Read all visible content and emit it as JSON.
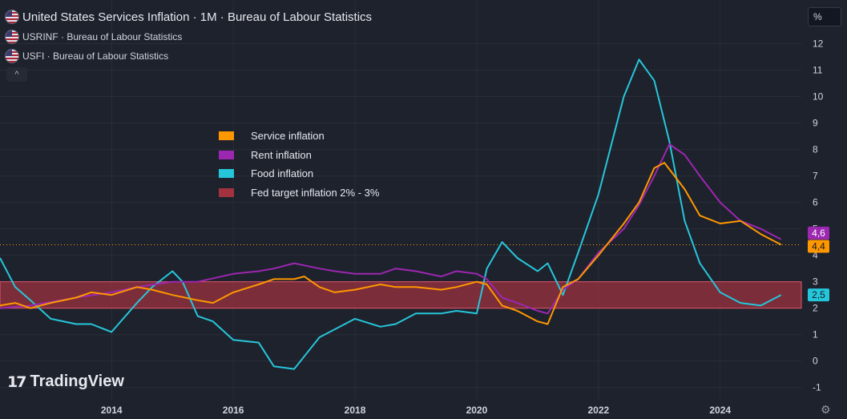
{
  "header": {
    "title": "United States Services Inflation · 1M · Bureau of Labour Statistics",
    "series_1": "USRINF · Bureau of Labour Statistics",
    "series_2": "USFI · Bureau of Labour Statistics",
    "collapse_glyph": "^"
  },
  "unit_label": "%",
  "legend": [
    {
      "label": "Service inflation",
      "color": "#ff9800"
    },
    {
      "label": "Rent inflation",
      "color": "#9c27b0"
    },
    {
      "label": "Food inflation",
      "color": "#26c6da"
    },
    {
      "label": "Fed target inflation 2% - 3%",
      "color": "#a3323f"
    }
  ],
  "branding": {
    "mark": "17",
    "name": "TradingView"
  },
  "settings_glyph": "⚙",
  "chart_data": {
    "type": "line",
    "x_axis": {
      "ticks": [
        "2014",
        "2016",
        "2018",
        "2020",
        "2022",
        "2024"
      ],
      "range": [
        "2012-03",
        "2025-05"
      ]
    },
    "y_axis": {
      "ticks": [
        "-1",
        "0",
        "1",
        "2",
        "3",
        "4",
        "5",
        "6",
        "7",
        "8",
        "9",
        "10",
        "11",
        "12"
      ],
      "ylim": [
        -1.25,
        12.5
      ],
      "unit": "%"
    },
    "band": {
      "label": "Fed target inflation 2% - 3%",
      "from": 2,
      "to": 3,
      "color": "#a3323f"
    },
    "reference_line": {
      "value": 4.4,
      "style": "dotted",
      "color": "#ff9800"
    },
    "series": [
      {
        "name": "Service inflation",
        "color": "#ff9800",
        "last_label": "4,4",
        "points": [
          [
            "2012-03",
            2.1
          ],
          [
            "2012-06",
            2.2
          ],
          [
            "2012-09",
            2.0
          ],
          [
            "2013-01",
            2.2
          ],
          [
            "2013-06",
            2.4
          ],
          [
            "2013-09",
            2.6
          ],
          [
            "2014-01",
            2.5
          ],
          [
            "2014-06",
            2.8
          ],
          [
            "2014-09",
            2.7
          ],
          [
            "2015-01",
            2.5
          ],
          [
            "2015-06",
            2.3
          ],
          [
            "2015-09",
            2.2
          ],
          [
            "2016-01",
            2.6
          ],
          [
            "2016-06",
            2.9
          ],
          [
            "2016-09",
            3.1
          ],
          [
            "2017-01",
            3.1
          ],
          [
            "2017-03",
            3.2
          ],
          [
            "2017-06",
            2.8
          ],
          [
            "2017-09",
            2.6
          ],
          [
            "2018-01",
            2.7
          ],
          [
            "2018-06",
            2.9
          ],
          [
            "2018-09",
            2.8
          ],
          [
            "2019-01",
            2.8
          ],
          [
            "2019-06",
            2.7
          ],
          [
            "2019-09",
            2.8
          ],
          [
            "2020-01",
            3.0
          ],
          [
            "2020-03",
            2.9
          ],
          [
            "2020-06",
            2.1
          ],
          [
            "2020-09",
            1.9
          ],
          [
            "2021-01",
            1.5
          ],
          [
            "2021-03",
            1.4
          ],
          [
            "2021-06",
            2.8
          ],
          [
            "2021-09",
            3.1
          ],
          [
            "2022-01",
            4.0
          ],
          [
            "2022-06",
            5.2
          ],
          [
            "2022-09",
            6.0
          ],
          [
            "2022-12",
            7.3
          ],
          [
            "2023-02",
            7.5
          ],
          [
            "2023-06",
            6.5
          ],
          [
            "2023-09",
            5.5
          ],
          [
            "2024-01",
            5.2
          ],
          [
            "2024-05",
            5.3
          ],
          [
            "2024-09",
            4.8
          ],
          [
            "2025-01",
            4.4
          ]
        ]
      },
      {
        "name": "Rent inflation",
        "color": "#9c27b0",
        "last_label": "4,6",
        "points": [
          [
            "2012-03",
            2.0
          ],
          [
            "2012-09",
            2.1
          ],
          [
            "2013-06",
            2.4
          ],
          [
            "2014-01",
            2.6
          ],
          [
            "2014-06",
            2.8
          ],
          [
            "2015-01",
            3.0
          ],
          [
            "2015-06",
            3.0
          ],
          [
            "2016-01",
            3.3
          ],
          [
            "2016-06",
            3.4
          ],
          [
            "2016-09",
            3.5
          ],
          [
            "2017-01",
            3.7
          ],
          [
            "2017-06",
            3.5
          ],
          [
            "2017-09",
            3.4
          ],
          [
            "2018-01",
            3.3
          ],
          [
            "2018-06",
            3.3
          ],
          [
            "2018-09",
            3.5
          ],
          [
            "2019-01",
            3.4
          ],
          [
            "2019-06",
            3.2
          ],
          [
            "2019-09",
            3.4
          ],
          [
            "2020-01",
            3.3
          ],
          [
            "2020-03",
            3.1
          ],
          [
            "2020-06",
            2.4
          ],
          [
            "2020-09",
            2.2
          ],
          [
            "2021-01",
            1.9
          ],
          [
            "2021-03",
            1.8
          ],
          [
            "2021-06",
            2.7
          ],
          [
            "2021-09",
            3.1
          ],
          [
            "2022-01",
            4.1
          ],
          [
            "2022-06",
            5.0
          ],
          [
            "2022-09",
            5.9
          ],
          [
            "2022-12",
            7.0
          ],
          [
            "2023-03",
            8.2
          ],
          [
            "2023-06",
            7.8
          ],
          [
            "2023-09",
            7.0
          ],
          [
            "2024-01",
            6.0
          ],
          [
            "2024-05",
            5.3
          ],
          [
            "2024-09",
            5.0
          ],
          [
            "2025-01",
            4.6
          ]
        ]
      },
      {
        "name": "Food inflation",
        "color": "#26c6da",
        "last_label": "2,5",
        "points": [
          [
            "2012-03",
            3.9
          ],
          [
            "2012-06",
            2.8
          ],
          [
            "2012-09",
            2.3
          ],
          [
            "2013-01",
            1.6
          ],
          [
            "2013-06",
            1.4
          ],
          [
            "2013-09",
            1.4
          ],
          [
            "2014-01",
            1.1
          ],
          [
            "2014-06",
            2.2
          ],
          [
            "2014-09",
            2.8
          ],
          [
            "2015-01",
            3.4
          ],
          [
            "2015-03",
            3.0
          ],
          [
            "2015-06",
            1.7
          ],
          [
            "2015-09",
            1.5
          ],
          [
            "2016-01",
            0.8
          ],
          [
            "2016-06",
            0.7
          ],
          [
            "2016-09",
            -0.2
          ],
          [
            "2017-01",
            -0.3
          ],
          [
            "2017-06",
            0.9
          ],
          [
            "2017-09",
            1.2
          ],
          [
            "2018-01",
            1.6
          ],
          [
            "2018-06",
            1.3
          ],
          [
            "2018-09",
            1.4
          ],
          [
            "2019-01",
            1.8
          ],
          [
            "2019-06",
            1.8
          ],
          [
            "2019-09",
            1.9
          ],
          [
            "2020-01",
            1.8
          ],
          [
            "2020-03",
            3.5
          ],
          [
            "2020-06",
            4.5
          ],
          [
            "2020-09",
            3.9
          ],
          [
            "2021-01",
            3.4
          ],
          [
            "2021-03",
            3.7
          ],
          [
            "2021-06",
            2.5
          ],
          [
            "2021-09",
            4.1
          ],
          [
            "2022-01",
            6.3
          ],
          [
            "2022-06",
            10.0
          ],
          [
            "2022-09",
            11.4
          ],
          [
            "2022-12",
            10.6
          ],
          [
            "2023-03",
            8.3
          ],
          [
            "2023-06",
            5.3
          ],
          [
            "2023-09",
            3.7
          ],
          [
            "2024-01",
            2.6
          ],
          [
            "2024-05",
            2.2
          ],
          [
            "2024-09",
            2.1
          ],
          [
            "2025-01",
            2.5
          ]
        ]
      }
    ]
  }
}
